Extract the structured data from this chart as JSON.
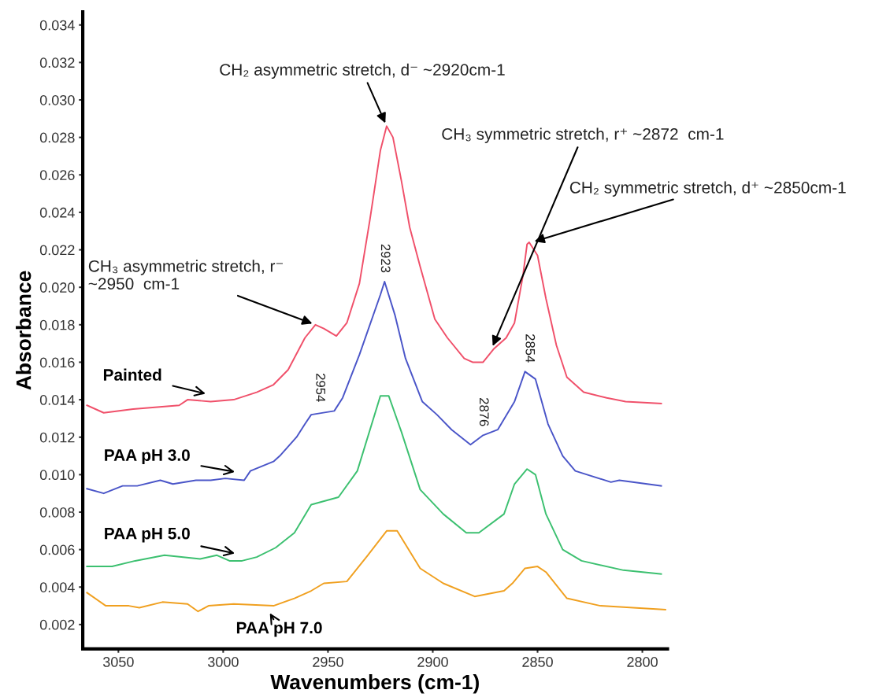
{
  "chart_data": {
    "type": "line",
    "xlabel": "Wavenumbers (cm-1)",
    "ylabel": "Absorbance",
    "xlim": [
      3067,
      2788
    ],
    "xticks": [
      3050,
      3000,
      2950,
      2900,
      2850,
      2800
    ],
    "ylim": [
      0.0007,
      0.0347
    ],
    "yticks": [
      {
        "value": 0.002,
        "label": "0.002"
      },
      {
        "value": 0.004,
        "label": "0.004"
      },
      {
        "value": 0.006,
        "label": "0.006"
      },
      {
        "value": 0.008,
        "label": "0.008"
      },
      {
        "value": 0.01,
        "label": "0.010"
      },
      {
        "value": 0.012,
        "label": "0.012"
      },
      {
        "value": 0.014,
        "label": "0.014"
      },
      {
        "value": 0.016,
        "label": "0.016"
      },
      {
        "value": 0.018,
        "label": "0.018"
      },
      {
        "value": 0.02,
        "label": "0.020"
      },
      {
        "value": 0.022,
        "label": "0.022"
      },
      {
        "value": 0.024,
        "label": "0.024"
      },
      {
        "value": 0.026,
        "label": "0.026"
      },
      {
        "value": 0.028,
        "label": "0.028"
      },
      {
        "value": 0.03,
        "label": "0.030"
      },
      {
        "value": 0.032,
        "label": "0.032"
      },
      {
        "value": 0.034,
        "label": "0.034"
      }
    ],
    "grid": false,
    "legend": false,
    "marker": "none",
    "line_style": "solid",
    "series": [
      {
        "name": "Painted",
        "color": "#f0506a",
        "x": [
          3065,
          3057,
          3043,
          3021,
          3017,
          3006,
          2995,
          2984,
          2976,
          2969,
          2961,
          2956,
          2952,
          2946,
          2941,
          2935,
          2930,
          2925,
          2922,
          2919,
          2915,
          2911,
          2906,
          2899,
          2893,
          2885,
          2881,
          2876,
          2871,
          2865,
          2861,
          2857,
          2855,
          2854,
          2850,
          2846,
          2841,
          2836,
          2828,
          2817,
          2808,
          2791
        ],
        "values": [
          0.0137,
          0.0133,
          0.0135,
          0.0137,
          0.014,
          0.0139,
          0.014,
          0.0144,
          0.0148,
          0.0156,
          0.0173,
          0.018,
          0.0178,
          0.0174,
          0.0181,
          0.0202,
          0.0236,
          0.0273,
          0.0286,
          0.028,
          0.0257,
          0.0232,
          0.0211,
          0.0183,
          0.0173,
          0.0162,
          0.016,
          0.016,
          0.0167,
          0.0173,
          0.0181,
          0.0206,
          0.0223,
          0.0224,
          0.0217,
          0.0194,
          0.0169,
          0.0152,
          0.0144,
          0.0141,
          0.0139,
          0.0138
        ]
      },
      {
        "name": "PAA pH 3.0",
        "color": "#4a55c8",
        "x": [
          3065,
          3057,
          3048,
          3041,
          3030,
          3024,
          3013,
          3006,
          2999,
          2990,
          2987,
          2976,
          2973,
          2965,
          2961,
          2958,
          2947,
          2943,
          2935,
          2925,
          2923,
          2918,
          2913,
          2905,
          2898,
          2891,
          2882,
          2876,
          2869,
          2861,
          2856,
          2851,
          2845,
          2838,
          2832,
          2815,
          2811,
          2791
        ],
        "values": [
          0.00925,
          0.009,
          0.0094,
          0.0094,
          0.0097,
          0.0095,
          0.0097,
          0.0097,
          0.0098,
          0.0097,
          0.0102,
          0.0107,
          0.011,
          0.012,
          0.0127,
          0.0132,
          0.0134,
          0.0141,
          0.0164,
          0.0196,
          0.0203,
          0.0185,
          0.0162,
          0.0139,
          0.0132,
          0.0124,
          0.0116,
          0.0121,
          0.0124,
          0.0139,
          0.0155,
          0.0151,
          0.0127,
          0.011,
          0.0102,
          0.0096,
          0.0097,
          0.0094
        ]
      },
      {
        "name": "PAA pH 5.0",
        "color": "#3cc070",
        "x": [
          3065,
          3053,
          3042,
          3028,
          3011,
          3003,
          2997,
          2991,
          2984,
          2975,
          2966,
          2958,
          2945,
          2936,
          2925,
          2921,
          2915,
          2906,
          2895,
          2884,
          2878,
          2866,
          2861,
          2855,
          2851,
          2846,
          2838,
          2829,
          2809,
          2791
        ],
        "values": [
          0.0051,
          0.0051,
          0.0054,
          0.0057,
          0.0055,
          0.0057,
          0.0054,
          0.0054,
          0.0056,
          0.0061,
          0.0069,
          0.0084,
          0.0088,
          0.0102,
          0.0142,
          0.0142,
          0.0123,
          0.0092,
          0.0079,
          0.0069,
          0.0069,
          0.0079,
          0.0095,
          0.0103,
          0.01,
          0.0079,
          0.006,
          0.0054,
          0.0049,
          0.0047
        ]
      },
      {
        "name": "PAA pH 7.0",
        "color": "#f0a020",
        "x": [
          3065,
          3056,
          3045,
          3040,
          3029,
          3017,
          3012,
          3007,
          2995,
          2976,
          2966,
          2958,
          2952,
          2941,
          2931,
          2922,
          2917,
          2906,
          2895,
          2880,
          2866,
          2862,
          2856,
          2850,
          2846,
          2836,
          2820,
          2789
        ],
        "values": [
          0.0037,
          0.003,
          0.003,
          0.0029,
          0.0032,
          0.0031,
          0.0027,
          0.003,
          0.0031,
          0.003,
          0.0034,
          0.0038,
          0.0042,
          0.0043,
          0.0057,
          0.007,
          0.007,
          0.005,
          0.0042,
          0.0035,
          0.0038,
          0.0042,
          0.005,
          0.0051,
          0.0048,
          0.0034,
          0.003,
          0.0028
        ]
      }
    ],
    "annotations": [
      {
        "text": "CH₂ asymmetric stretch, d⁻ ~2920cm-1",
        "x": 2922,
        "y": 0.0286
      },
      {
        "text": "CH₃ symmetric stretch, r⁺ ~2872  cm-1",
        "x": 2872,
        "y": 0.0167
      },
      {
        "text": "CH₂ symmetric stretch, d⁺ ~2850cm-1",
        "x": 2853,
        "y": 0.0224
      },
      {
        "text": "CH₃ asymmetric stretch, r⁻\n~2950  cm-1",
        "x": 2956,
        "y": 0.018
      },
      {
        "text": "2923",
        "x": 2923,
        "y": 0.0203
      },
      {
        "text": "2954",
        "x": 2954,
        "y": 0.0134
      },
      {
        "text": "2876",
        "x": 2876,
        "y": 0.0121
      },
      {
        "text": "2854",
        "x": 2854,
        "y": 0.0155
      }
    ]
  }
}
